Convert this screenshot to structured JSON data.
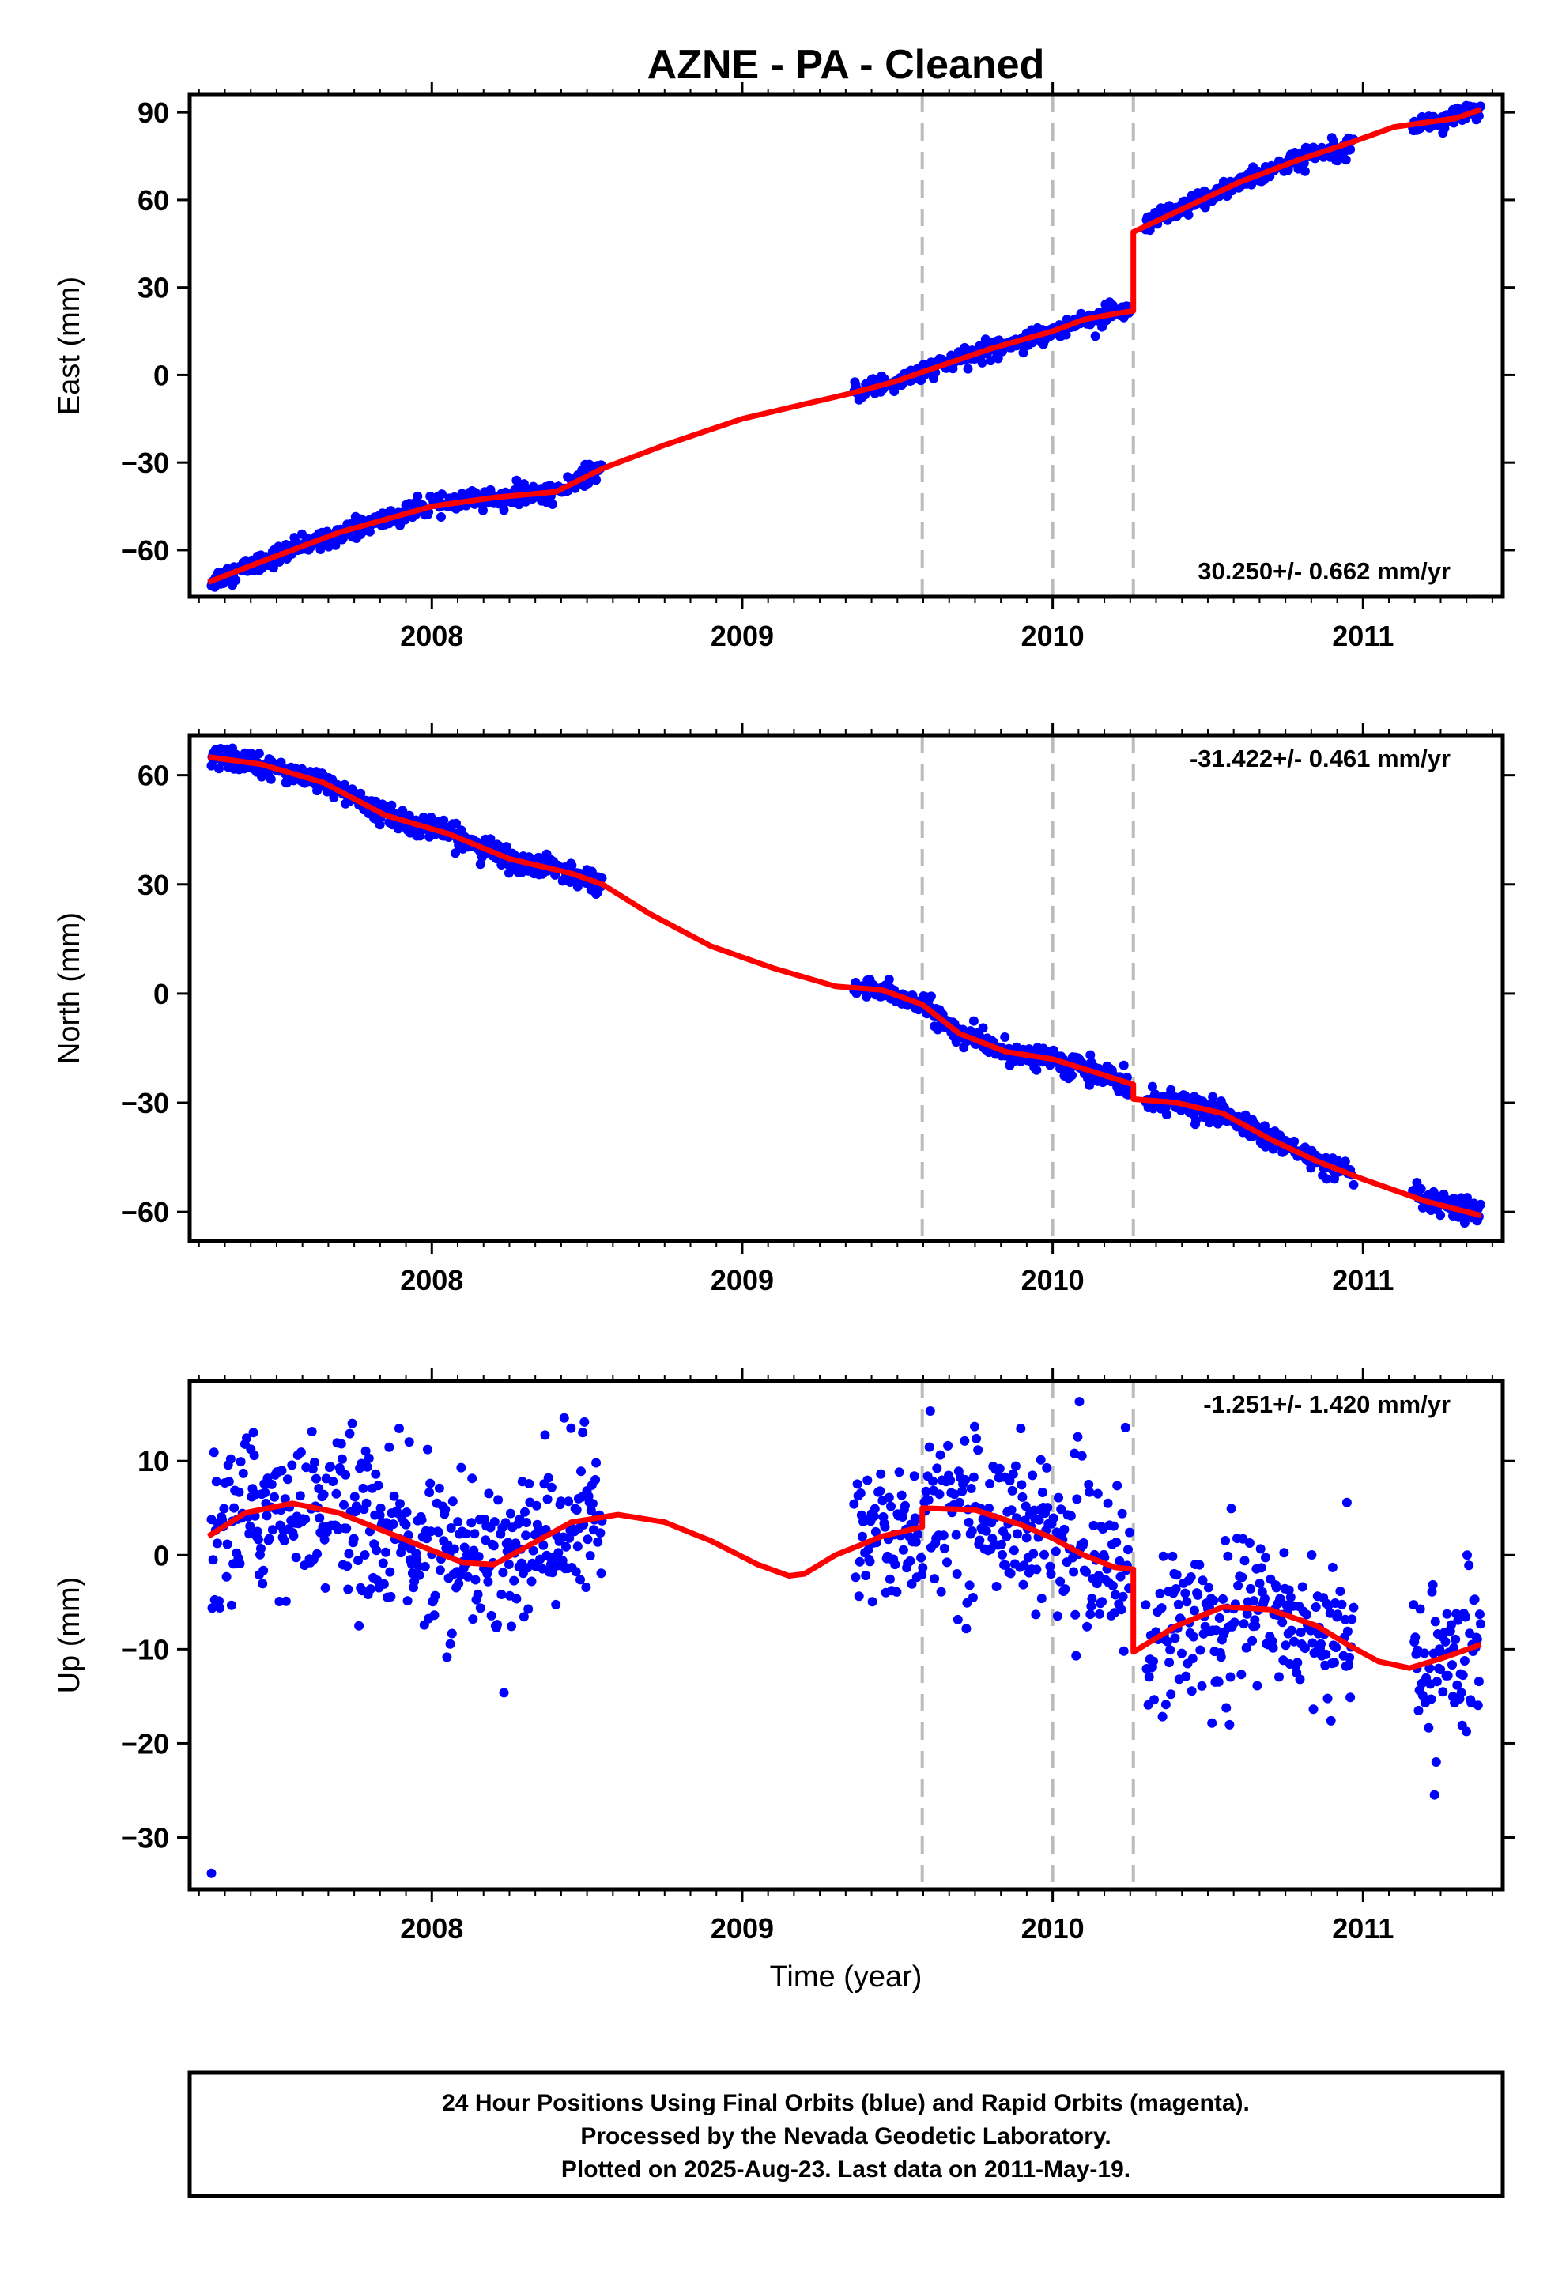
{
  "chart_data": {
    "title": "AZNE  - PA - Cleaned",
    "xlabel": "Time (year)",
    "xlim": [
      2007.22,
      2011.45
    ],
    "x_ticks": [
      2008,
      2009,
      2010,
      2011
    ],
    "x_tick_labels": [
      "2008",
      "2009",
      "2010",
      "2011"
    ],
    "steps": [
      2009.58,
      2010.0,
      2010.26
    ],
    "colors": {
      "points": "#0000ff",
      "model": "#ff0000",
      "steps": "#bbbbbb",
      "frame": "#000000"
    },
    "panels": [
      {
        "type": "scatter",
        "name": "east",
        "ylabel": "East (mm)",
        "ylim": [
          -76,
          96
        ],
        "y_ticks": [
          -60,
          -30,
          0,
          30,
          60,
          90
        ],
        "y_tick_labels": [
          "−60",
          "−30",
          "0",
          "30",
          "60",
          "90"
        ],
        "rate_label": "30.250+/- 0.662 mm/yr",
        "rate_position": "bottom-right",
        "data_segments": [
          [
            2007.29,
            2008.55
          ],
          [
            2009.36,
            2010.25
          ],
          [
            2010.3,
            2010.97
          ],
          [
            2011.16,
            2011.38
          ]
        ],
        "noise_mm": 1.6,
        "model": {
          "x": [
            2007.28,
            2007.45,
            2007.7,
            2008.0,
            2008.2,
            2008.4,
            2008.55,
            2008.75,
            2009.0,
            2009.2,
            2009.36,
            2009.5,
            2009.58,
            2009.8,
            2010.0,
            2010.1,
            2010.2,
            2010.26,
            2010.26,
            2010.4,
            2010.6,
            2010.8,
            2010.97,
            2011.1,
            2011.3,
            2011.38
          ],
          "y": [
            -71,
            -64,
            -54,
            -45,
            -42,
            -40,
            -32,
            -24,
            -15,
            -10,
            -6,
            -2,
            1,
            9,
            15,
            19,
            21,
            22,
            49,
            56,
            66,
            74,
            80,
            85,
            88,
            91
          ]
        }
      },
      {
        "type": "scatter",
        "name": "north",
        "ylabel": "North (mm)",
        "ylim": [
          -68,
          71
        ],
        "y_ticks": [
          -60,
          -30,
          0,
          30,
          60
        ],
        "y_tick_labels": [
          "−60",
          "−30",
          "0",
          "30",
          "60"
        ],
        "rate_label": "-31.422+/- 0.461 mm/yr",
        "rate_position": "top-right",
        "data_segments": [
          [
            2007.29,
            2008.55
          ],
          [
            2009.36,
            2010.25
          ],
          [
            2010.3,
            2010.97
          ],
          [
            2011.16,
            2011.38
          ]
        ],
        "noise_mm": 1.5,
        "model": {
          "x": [
            2007.28,
            2007.45,
            2007.65,
            2007.85,
            2008.05,
            2008.25,
            2008.45,
            2008.55,
            2008.7,
            2008.9,
            2009.1,
            2009.3,
            2009.45,
            2009.58,
            2009.7,
            2009.85,
            2010.0,
            2010.15,
            2010.26,
            2010.26,
            2010.4,
            2010.55,
            2010.7,
            2010.85,
            2011.0,
            2011.2,
            2011.38
          ],
          "y": [
            65,
            63,
            58,
            49,
            44,
            37,
            33,
            30,
            22,
            13,
            7,
            2,
            1,
            -3,
            -11,
            -16,
            -18,
            -22,
            -25,
            -29,
            -30,
            -33,
            -40,
            -46,
            -51,
            -57,
            -61
          ]
        }
      },
      {
        "type": "scatter",
        "name": "up",
        "ylabel": "Up (mm)",
        "ylim": [
          -35.5,
          18.5
        ],
        "y_ticks": [
          -30,
          -20,
          -10,
          0,
          10
        ],
        "y_tick_labels": [
          "−30",
          "−20",
          "−10",
          "0",
          "10"
        ],
        "rate_label": "-1.251+/- 1.420 mm/yr",
        "rate_position": "top-right",
        "data_segments": [
          [
            2007.29,
            2008.55
          ],
          [
            2009.36,
            2010.25
          ],
          [
            2010.3,
            2010.97
          ],
          [
            2011.16,
            2011.38
          ]
        ],
        "noise_mm": 4.2,
        "outliers": [
          [
            2007.29,
            -33.8
          ]
        ],
        "model": {
          "x": [
            2007.28,
            2007.4,
            2007.55,
            2007.7,
            2007.85,
            2008.0,
            2008.1,
            2008.2,
            2008.3,
            2008.45,
            2008.6,
            2008.75,
            2008.9,
            2009.05,
            2009.15,
            2009.2,
            2009.3,
            2009.45,
            2009.58,
            2009.58,
            2009.75,
            2009.9,
            2010.0,
            2010.1,
            2010.2,
            2010.26,
            2010.26,
            2010.4,
            2010.55,
            2010.7,
            2010.85,
            2010.95,
            2011.05,
            2011.15,
            2011.25,
            2011.38
          ],
          "y": [
            2,
            4.5,
            5.5,
            4.5,
            2.5,
            0.5,
            -0.8,
            -1,
            0.8,
            3.5,
            4.3,
            3.5,
            1.5,
            -1,
            -2.2,
            -2,
            0,
            2,
            3,
            5,
            4.8,
            3.2,
            1.8,
            0,
            -1.3,
            -1.5,
            -10.3,
            -7.5,
            -5.5,
            -5.8,
            -7.5,
            -9.5,
            -11.3,
            -12,
            -11,
            -9.5
          ]
        }
      }
    ]
  },
  "footer": {
    "line1": "24 Hour Positions Using Final Orbits (blue) and Rapid Orbits (magenta).",
    "line2": "Processed by the Nevada Geodetic Laboratory.",
    "line3": "Plotted on 2025-Aug-23. Last data on 2011-May-19."
  }
}
